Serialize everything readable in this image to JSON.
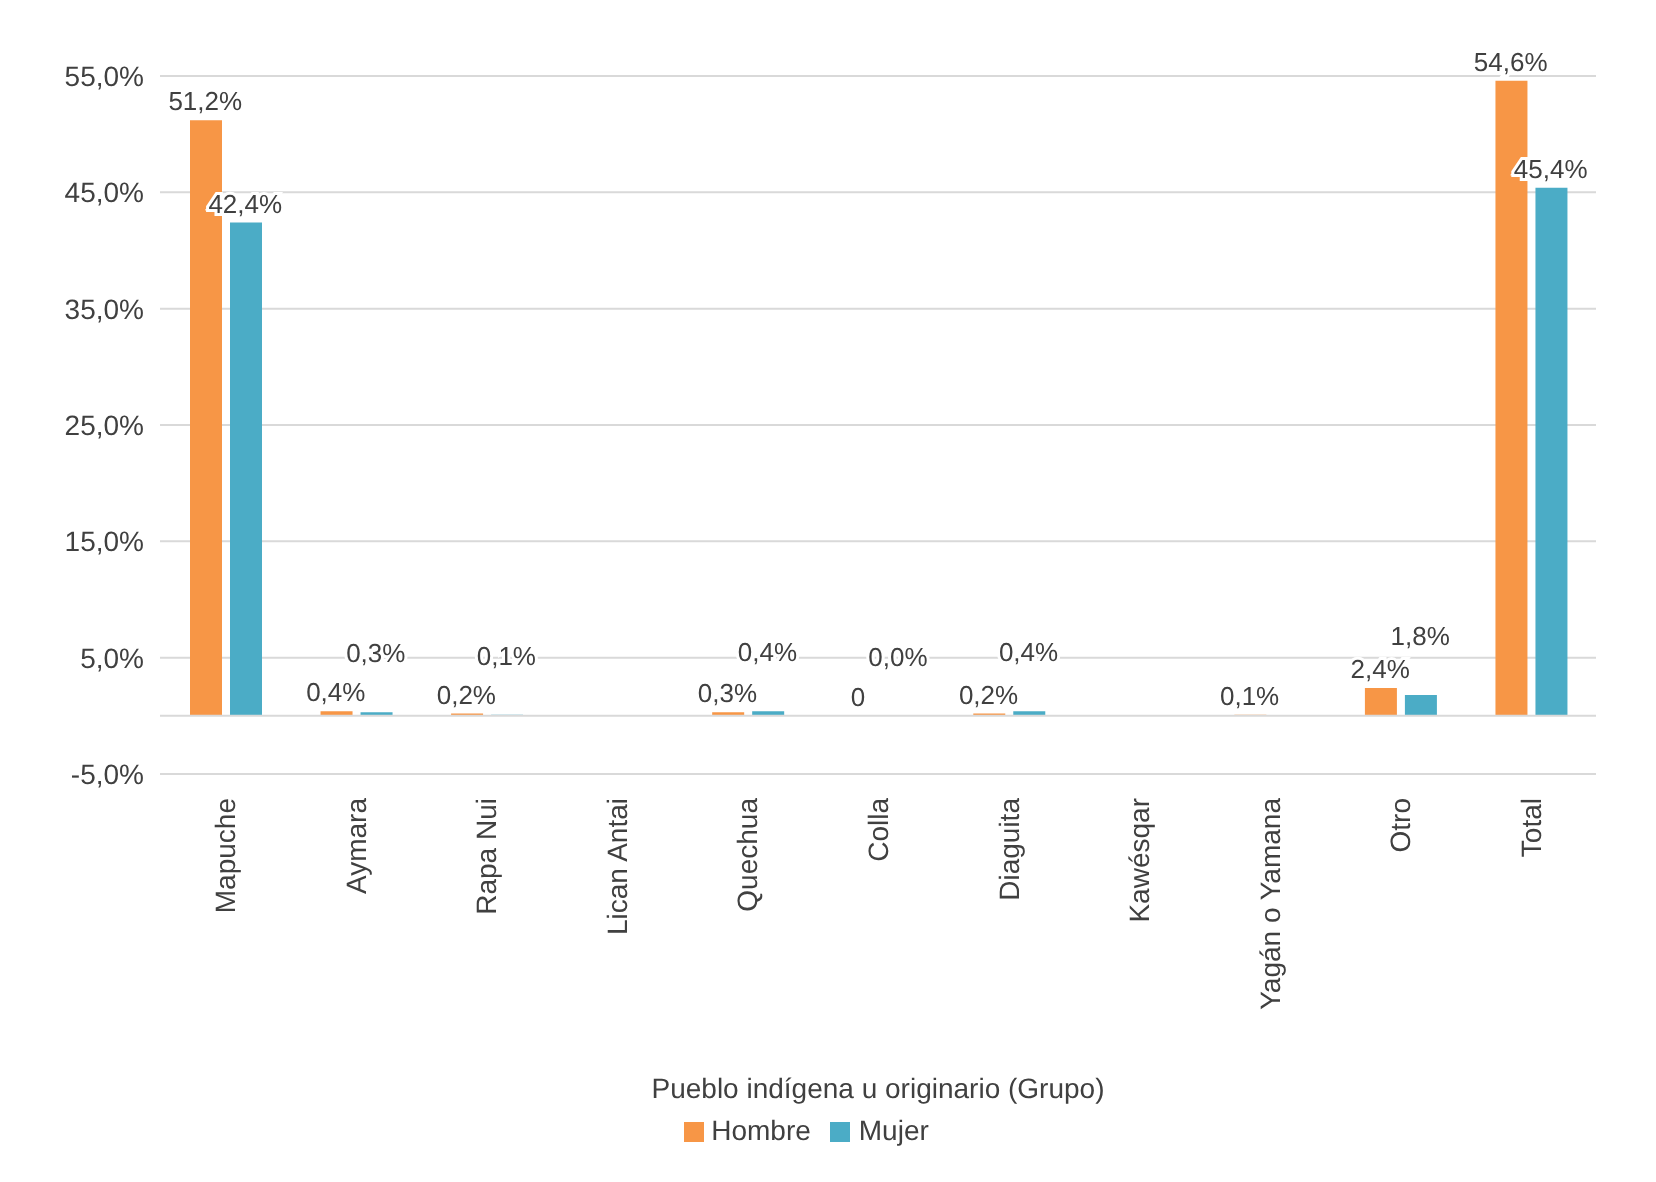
{
  "chart_data": {
    "type": "bar",
    "xlabel": "Pueblo indígena u originario (Grupo)",
    "categories": [
      "Mapuche",
      "Aymara",
      "Rapa Nui",
      "Lican Antai",
      "Quechua",
      "Colla",
      "Diaguita",
      "Kawésqar",
      "Yagán o Yamana",
      "Otro",
      "Total"
    ],
    "series": [
      {
        "name": "Hombre",
        "color": "#f79646",
        "values": [
          51.2,
          0.4,
          0.2,
          null,
          0.3,
          0,
          0.2,
          null,
          0.1,
          2.4,
          54.6
        ],
        "value_labels": [
          "51,2%",
          "0,4%",
          "0,2%",
          null,
          "0,3%",
          "0",
          "0,2%",
          null,
          "0,1%",
          "2,4%",
          "54,6%"
        ]
      },
      {
        "name": "Mujer",
        "color": "#4bacc6",
        "values": [
          42.4,
          0.3,
          0.1,
          null,
          0.4,
          0.0,
          0.4,
          null,
          null,
          1.8,
          45.4
        ],
        "value_labels": [
          "42,4%",
          "0,3%",
          "0,1%",
          null,
          "0,4%",
          "0,0%",
          "0,4%",
          null,
          null,
          "1,8%",
          "45,4%"
        ]
      }
    ],
    "ylim": [
      -5,
      55
    ],
    "yticks": [
      {
        "value": -5,
        "label": "-5,0%"
      },
      {
        "value": 5,
        "label": "5,0%"
      },
      {
        "value": 15,
        "label": "15,0%"
      },
      {
        "value": 25,
        "label": "25,0%"
      },
      {
        "value": 35,
        "label": "35,0%"
      },
      {
        "value": 45,
        "label": "45,0%"
      },
      {
        "value": 55,
        "label": "55,0%"
      }
    ],
    "grid": "y",
    "legend": "bottom"
  }
}
